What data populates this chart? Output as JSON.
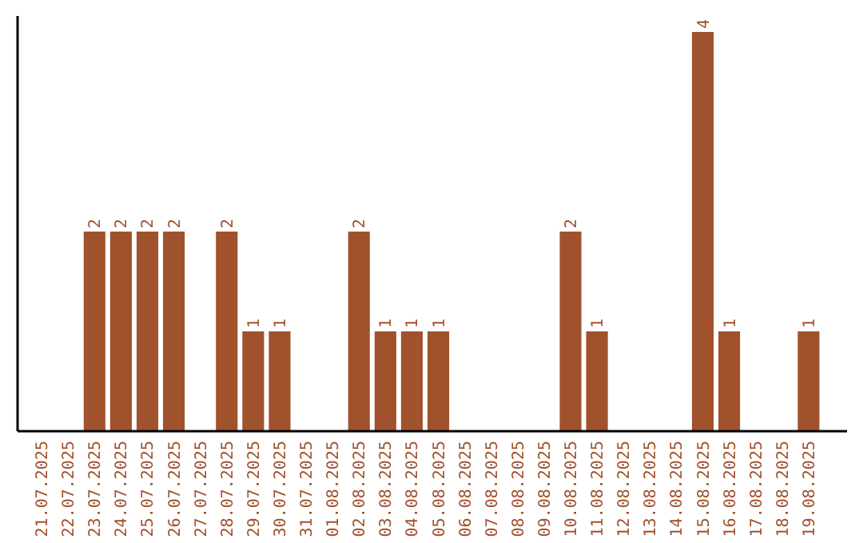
{
  "chart_data": {
    "type": "bar",
    "categories": [
      "21.07.2025",
      "22.07.2025",
      "23.07.2025",
      "24.07.2025",
      "25.07.2025",
      "26.07.2025",
      "27.07.2025",
      "28.07.2025",
      "29.07.2025",
      "30.07.2025",
      "31.07.2025",
      "01.08.2025",
      "02.08.2025",
      "03.08.2025",
      "04.08.2025",
      "05.08.2025",
      "06.08.2025",
      "07.08.2025",
      "08.08.2025",
      "09.08.2025",
      "10.08.2025",
      "11.08.2025",
      "12.08.2025",
      "13.08.2025",
      "14.08.2025",
      "15.08.2025",
      "16.08.2025",
      "17.08.2025",
      "18.08.2025",
      "19.08.2025"
    ],
    "values": [
      0,
      0,
      2,
      2,
      2,
      2,
      0,
      2,
      1,
      1,
      0,
      0,
      2,
      1,
      1,
      1,
      0,
      0,
      0,
      0,
      2,
      1,
      0,
      0,
      0,
      4,
      1,
      0,
      0,
      1
    ],
    "value_labels": [
      null,
      null,
      "2",
      "2",
      "2",
      "2",
      null,
      "2",
      "1",
      "1",
      null,
      null,
      "2",
      "1",
      "1",
      "1",
      null,
      null,
      null,
      null,
      "2",
      "1",
      null,
      null,
      null,
      "4",
      "1",
      null,
      null,
      "1"
    ],
    "color": "#a0522d",
    "tick_labels": "x"
  }
}
